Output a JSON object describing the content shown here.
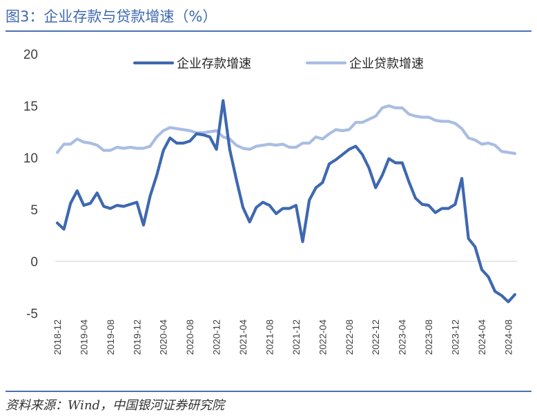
{
  "header": {
    "title": "图3：企业存款与贷款增速（%）"
  },
  "footer": {
    "source": "资料来源：Wind，中国银河证券研究院"
  },
  "colors": {
    "deposit": "#3E68B0",
    "loan": "#A9BDE3",
    "accent": "#4A6FB3",
    "axis": "#D9D9D9"
  },
  "chart_data": {
    "type": "line",
    "title": "企业存款与贷款增速（%）",
    "xlabel": "",
    "ylabel": "",
    "ylim": [
      -5,
      20
    ],
    "yticks": [
      -5,
      0,
      5,
      10,
      15,
      20
    ],
    "grid": false,
    "legend": "top",
    "x": [
      "2018-12",
      "2019-01",
      "2019-02",
      "2019-03",
      "2019-04",
      "2019-05",
      "2019-06",
      "2019-07",
      "2019-08",
      "2019-09",
      "2019-10",
      "2019-11",
      "2019-12",
      "2020-01",
      "2020-02",
      "2020-03",
      "2020-04",
      "2020-05",
      "2020-06",
      "2020-07",
      "2020-08",
      "2020-09",
      "2020-10",
      "2020-11",
      "2020-12",
      "2021-01",
      "2021-02",
      "2021-03",
      "2021-04",
      "2021-05",
      "2021-06",
      "2021-07",
      "2021-08",
      "2021-09",
      "2021-10",
      "2021-11",
      "2021-12",
      "2022-01",
      "2022-02",
      "2022-03",
      "2022-04",
      "2022-05",
      "2022-06",
      "2022-07",
      "2022-08",
      "2022-09",
      "2022-10",
      "2022-11",
      "2022-12",
      "2023-01",
      "2023-02",
      "2023-03",
      "2023-04",
      "2023-05",
      "2023-06",
      "2023-07",
      "2023-08",
      "2023-09",
      "2023-10",
      "2023-11",
      "2023-12",
      "2024-01",
      "2024-02",
      "2024-03",
      "2024-04",
      "2024-05",
      "2024-06",
      "2024-07",
      "2024-08",
      "2024-09"
    ],
    "xticks": [
      "2018-12",
      "2019-04",
      "2019-08",
      "2019-12",
      "2020-04",
      "2020-08",
      "2020-12",
      "2021-04",
      "2021-08",
      "2021-12",
      "2022-04",
      "2022-08",
      "2022-12",
      "2023-04",
      "2023-08",
      "2023-12",
      "2024-04",
      "2024-08"
    ],
    "series": [
      {
        "name": "企业存款增速",
        "values": [
          3.7,
          3.1,
          5.6,
          6.8,
          5.4,
          5.6,
          6.6,
          5.3,
          5.1,
          5.4,
          5.3,
          5.5,
          5.7,
          3.5,
          6.3,
          8.3,
          10.7,
          11.9,
          11.4,
          11.4,
          11.6,
          12.3,
          12.2,
          12.0,
          10.8,
          15.5,
          10.8,
          7.9,
          5.2,
          3.8,
          5.2,
          5.7,
          5.4,
          4.6,
          5.1,
          5.1,
          5.4,
          1.9,
          5.9,
          7.1,
          7.6,
          9.4,
          9.8,
          10.3,
          10.8,
          11.1,
          10.3,
          9.0,
          7.1,
          8.3,
          9.9,
          9.5,
          9.5,
          7.7,
          6.1,
          5.5,
          5.4,
          4.7,
          5.1,
          5.1,
          5.5,
          8.0,
          2.2,
          1.4,
          -0.8,
          -1.5,
          -2.9,
          -3.3,
          -3.9,
          -3.2
        ]
      },
      {
        "name": "企业贷款增速",
        "values": [
          10.5,
          11.3,
          11.3,
          11.8,
          11.5,
          11.4,
          11.2,
          10.7,
          10.7,
          11.0,
          10.9,
          11.0,
          10.9,
          10.9,
          11.1,
          12.0,
          12.6,
          12.9,
          12.8,
          12.7,
          12.6,
          12.4,
          12.4,
          12.5,
          12.6,
          12.0,
          11.8,
          11.2,
          10.9,
          10.8,
          11.1,
          11.2,
          11.3,
          11.2,
          11.3,
          11.0,
          11.0,
          11.4,
          11.4,
          12.0,
          11.8,
          12.3,
          12.7,
          12.6,
          12.7,
          13.4,
          13.4,
          13.7,
          14.0,
          14.8,
          15.0,
          14.8,
          14.8,
          14.2,
          14.0,
          13.9,
          13.9,
          13.6,
          13.5,
          13.5,
          13.3,
          12.8,
          11.9,
          11.7,
          11.3,
          11.4,
          11.2,
          10.6,
          10.5,
          10.4
        ]
      }
    ]
  }
}
